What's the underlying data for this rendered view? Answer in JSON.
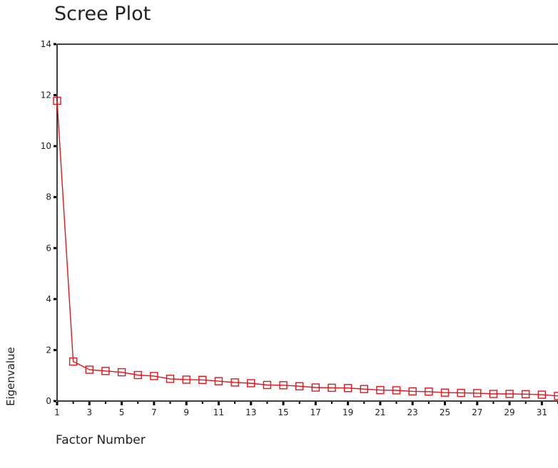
{
  "chart_data": {
    "type": "line",
    "title": "Scree Plot",
    "xlabel": "Factor Number",
    "ylabel": "Eigenvalue",
    "xlim": [
      1,
      32
    ],
    "ylim": [
      0,
      14
    ],
    "x_tick_labels": [
      "1",
      "3",
      "5",
      "7",
      "9",
      "11",
      "13",
      "15",
      "17",
      "19",
      "21",
      "23",
      "25",
      "27",
      "29",
      "31"
    ],
    "y_tick_labels": [
      "0",
      "2",
      "4",
      "6",
      "8",
      "10",
      "12",
      "14"
    ],
    "series_color": "#e0151b",
    "marker": "square-open",
    "x": [
      1,
      2,
      3,
      4,
      5,
      6,
      7,
      8,
      9,
      10,
      11,
      12,
      13,
      14,
      15,
      16,
      17,
      18,
      19,
      20,
      21,
      22,
      23,
      24,
      25,
      26,
      27,
      28,
      29,
      30,
      31,
      32
    ],
    "values": [
      11.78,
      1.55,
      1.23,
      1.18,
      1.13,
      1.02,
      0.98,
      0.87,
      0.84,
      0.83,
      0.78,
      0.73,
      0.7,
      0.63,
      0.62,
      0.58,
      0.53,
      0.52,
      0.51,
      0.47,
      0.43,
      0.42,
      0.38,
      0.37,
      0.33,
      0.32,
      0.31,
      0.28,
      0.28,
      0.27,
      0.25,
      0.2
    ]
  }
}
